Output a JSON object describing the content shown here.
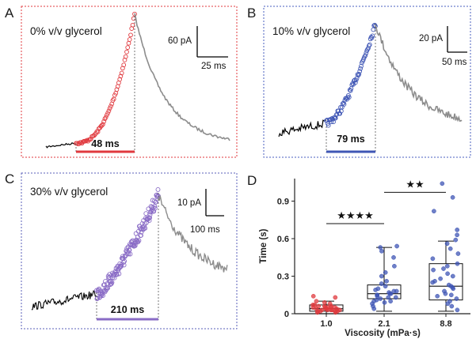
{
  "colors": {
    "red": "#e0393e",
    "blue": "#3f56b5",
    "purple": "#8a6cc6",
    "black": "#000000",
    "gray": "#8c8c8c",
    "frame_red": "#e0393e",
    "frame_blue": "#4a5fbf",
    "frame_purple": "#5a5fb8"
  },
  "panels": [
    {
      "letter": "A",
      "condition": "0% v/v glycerol",
      "scale_y": "60 pA",
      "scale_x": "25 ms",
      "duration": "48 ms"
    },
    {
      "letter": "B",
      "condition": "10% v/v glycerol",
      "scale_y": "20 pA",
      "scale_x": "50 ms",
      "duration": "79 ms"
    },
    {
      "letter": "C",
      "condition": "30% v/v glycerol",
      "scale_y": "10 pA",
      "scale_x": "100 ms",
      "duration": "210 ms"
    }
  ],
  "chart_data": [
    {
      "type": "line",
      "panel": "A",
      "title": "0% v/v glycerol",
      "baseline_trace_color": "black",
      "rise_marker_color": "red",
      "decay_trace_color": "gray",
      "rise_duration_ms": 48,
      "scale_bars": {
        "current": "60 pA",
        "time": "25 ms"
      }
    },
    {
      "type": "line",
      "panel": "B",
      "title": "10% v/v glycerol",
      "rise_duration_ms": 79,
      "scale_bars": {
        "current": "20 pA",
        "time": "50 ms"
      }
    },
    {
      "type": "line",
      "panel": "C",
      "title": "30% v/v glycerol",
      "rise_duration_ms": 210,
      "scale_bars": {
        "current": "10 pA",
        "time": "100 ms"
      }
    },
    {
      "type": "box",
      "panel": "D",
      "xlabel": "Viscosity (mPa·s)",
      "ylabel": "Time (s)",
      "categories": [
        "1.0",
        "2.1",
        "8.8"
      ],
      "yticks": [
        "0",
        "0.3",
        "0.6",
        "0.9"
      ],
      "ylim": [
        0,
        1.08
      ],
      "boxes": [
        {
          "category": "1.0",
          "whisker_low": 0.0,
          "q1": 0.02,
          "median": 0.04,
          "q3": 0.07,
          "whisker_high": 0.1,
          "color": "red"
        },
        {
          "category": "2.1",
          "whisker_low": 0.02,
          "q1": 0.12,
          "median": 0.16,
          "q3": 0.23,
          "whisker_high": 0.53,
          "color": "blue"
        },
        {
          "category": "8.8",
          "whisker_low": 0.02,
          "q1": 0.11,
          "median": 0.22,
          "q3": 0.4,
          "whisker_high": 0.58,
          "color": "blue"
        }
      ],
      "points": [
        {
          "category": "1.0",
          "values": [
            0.01,
            0.02,
            0.02,
            0.03,
            0.03,
            0.03,
            0.04,
            0.04,
            0.04,
            0.05,
            0.05,
            0.05,
            0.06,
            0.06,
            0.07,
            0.08,
            0.09,
            0.1,
            0.13,
            0.14,
            0.02,
            0.03,
            0.04,
            0.05,
            0.06,
            0.01,
            0.02,
            0.03,
            0.05,
            0.07
          ]
        },
        {
          "category": "2.1",
          "values": [
            0.04,
            0.06,
            0.08,
            0.09,
            0.1,
            0.11,
            0.12,
            0.13,
            0.14,
            0.15,
            0.16,
            0.16,
            0.17,
            0.18,
            0.19,
            0.2,
            0.22,
            0.24,
            0.26,
            0.3,
            0.33,
            0.38,
            0.45,
            0.5,
            0.53,
            0.54,
            0.1,
            0.13,
            0.15,
            0.18
          ]
        },
        {
          "category": "8.8",
          "values": [
            0.03,
            0.06,
            0.08,
            0.1,
            0.12,
            0.14,
            0.16,
            0.18,
            0.2,
            0.21,
            0.22,
            0.23,
            0.25,
            0.28,
            0.3,
            0.32,
            0.35,
            0.38,
            0.4,
            0.44,
            0.48,
            0.52,
            0.56,
            0.59,
            0.63,
            0.67,
            0.82,
            0.93,
            1.04,
            0.15,
            0.26,
            0.36
          ]
        }
      ],
      "significance": [
        {
          "between": [
            "1.0",
            "2.1"
          ],
          "label": "★★★★"
        },
        {
          "between": [
            "2.1",
            "8.8"
          ],
          "label": "★★"
        }
      ]
    }
  ]
}
